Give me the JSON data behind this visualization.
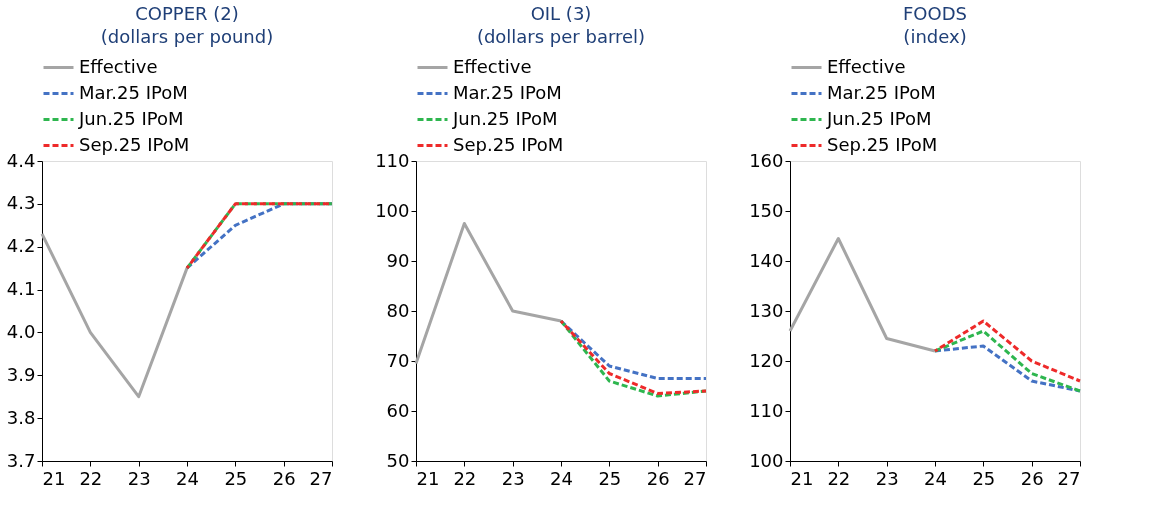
{
  "chart_data": [
    {
      "type": "line",
      "title": [
        "COPPER (2)",
        "(dollars per pound)"
      ],
      "categories": [
        "21",
        "22",
        "23",
        "24",
        "25",
        "26",
        "27"
      ],
      "ylim": [
        3.7,
        4.4
      ],
      "yticks": [
        3.7,
        3.8,
        3.9,
        {
          "value": 4,
          "label": "4.0"
        },
        4.1,
        4.2,
        4.3,
        4.4
      ],
      "grid": false,
      "legend": "top",
      "marker": "none",
      "series": [
        {
          "name": "Effective",
          "color": "#a5a5a5",
          "line_style": "solid",
          "values": [
            4.23,
            4.0,
            3.85,
            4.15,
            null,
            null,
            null
          ]
        },
        {
          "name": "Mar.25 IPoM",
          "color": "#4472c4",
          "line_style": "dashed",
          "values": [
            null,
            null,
            null,
            4.15,
            4.25,
            4.3,
            4.3
          ]
        },
        {
          "name": "Jun.25 IPoM",
          "color": "#2eb64f",
          "line_style": "dashed",
          "values": [
            null,
            null,
            null,
            4.15,
            4.3,
            4.3,
            4.3
          ]
        },
        {
          "name": "Sep.25 IPoM",
          "color": "#ee2a2a",
          "line_style": "dashed",
          "values": [
            null,
            null,
            null,
            4.15,
            4.3,
            4.3,
            4.3
          ]
        }
      ]
    },
    {
      "type": "line",
      "title": [
        "OIL (3)",
        "(dollars per barrel)"
      ],
      "categories": [
        "21",
        "22",
        "23",
        "24",
        "25",
        "26",
        "27"
      ],
      "ylim": [
        50,
        110
      ],
      "yticks": [
        50,
        60,
        70,
        80,
        90,
        100,
        110
      ],
      "grid": false,
      "legend": "top",
      "marker": "none",
      "series": [
        {
          "name": "Effective",
          "color": "#a5a5a5",
          "line_style": "solid",
          "values": [
            69.5,
            97.5,
            80,
            78,
            null,
            null,
            null
          ]
        },
        {
          "name": "Mar.25 IPoM",
          "color": "#4472c4",
          "line_style": "dashed",
          "values": [
            null,
            null,
            null,
            78,
            69,
            66.5,
            66.5
          ]
        },
        {
          "name": "Jun.25 IPoM",
          "color": "#2eb64f",
          "line_style": "dashed",
          "values": [
            null,
            null,
            null,
            78,
            66,
            63,
            64
          ]
        },
        {
          "name": "Sep.25 IPoM",
          "color": "#ee2a2a",
          "line_style": "dashed",
          "values": [
            null,
            null,
            null,
            78,
            67.5,
            63.5,
            64
          ]
        }
      ]
    },
    {
      "type": "line",
      "title": [
        "FOODS",
        "(index)"
      ],
      "categories": [
        "21",
        "22",
        "23",
        "24",
        "25",
        "26",
        "27"
      ],
      "ylim": [
        100,
        160
      ],
      "yticks": [
        100,
        110,
        120,
        130,
        140,
        150,
        160
      ],
      "grid": false,
      "legend": "top",
      "marker": "none",
      "series": [
        {
          "name": "Effective",
          "color": "#a5a5a5",
          "line_style": "solid",
          "values": [
            126,
            144.5,
            124.5,
            122,
            null,
            null,
            null
          ]
        },
        {
          "name": "Mar.25 IPoM",
          "color": "#4472c4",
          "line_style": "dashed",
          "values": [
            null,
            null,
            null,
            122,
            123,
            116,
            114
          ]
        },
        {
          "name": "Jun.25 IPoM",
          "color": "#2eb64f",
          "line_style": "dashed",
          "values": [
            null,
            null,
            null,
            122,
            126,
            117.5,
            114
          ]
        },
        {
          "name": "Sep.25 IPoM",
          "color": "#ee2a2a",
          "line_style": "dashed",
          "values": [
            null,
            null,
            null,
            122,
            128,
            120,
            116
          ]
        }
      ]
    }
  ]
}
